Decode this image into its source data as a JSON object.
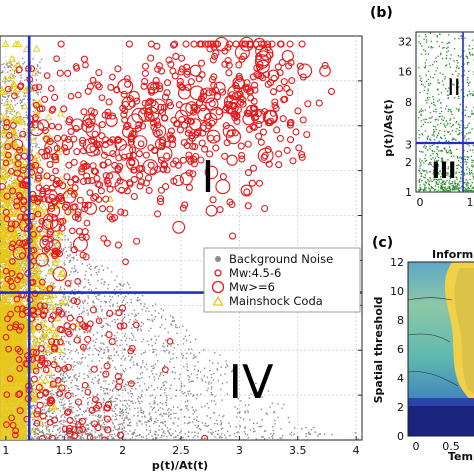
{
  "panels": {
    "b_letter": "(b)",
    "c_letter": "(c)"
  },
  "chart_data": [
    {
      "id": "main",
      "type": "scatter",
      "xlabel": "p(t)/At(t)",
      "x_ticks": [
        "1",
        "1.5",
        "2",
        "2.5",
        "3",
        "3.5",
        "4"
      ],
      "x_tick_values": [
        1,
        1.5,
        2,
        2.5,
        3,
        3.5,
        4
      ],
      "xlim": [
        0.95,
        4.05
      ],
      "ylim": [
        0,
        1
      ],
      "grid": true,
      "thresholds": {
        "x": 1.2,
        "y_frac": 0.365
      },
      "region_labels": [
        "I",
        "IV"
      ],
      "legend": {
        "placement": "center-right",
        "entries": [
          {
            "label": "Background Noise",
            "marker": "dot",
            "color": "#8c8c8c"
          },
          {
            "label": "Mw:4.5-6",
            "marker": "small-circle",
            "color": "#e41a1c"
          },
          {
            "label": "Mw>=6",
            "marker": "large-circle",
            "color": "#e41a1c"
          },
          {
            "label": "Mainshock Coda",
            "marker": "triangle",
            "color": "#e6c619"
          }
        ]
      },
      "colors": {
        "noise": "#8c8c8c",
        "mw": "#e41a1c",
        "coda": "#e6c619",
        "coda_fill": "#e6c619",
        "threshold": "#1f2fbf"
      }
    },
    {
      "id": "inset-b",
      "type": "scatter",
      "ylabel": "p(t)/As(t)",
      "y_ticks": [
        "1",
        "2",
        "3",
        "8",
        "16",
        "32"
      ],
      "y_tick_values": [
        1,
        2,
        3,
        8,
        16,
        32
      ],
      "y_scale": "log",
      "x_ticks": [
        "0",
        "1"
      ],
      "x_tick_values": [
        0,
        1
      ],
      "region_labels": [
        "II",
        "III"
      ],
      "threshold_y": 3,
      "colors": {
        "points": "#2e8b2e",
        "threshold": "#1f2fbf"
      }
    },
    {
      "id": "inset-c",
      "type": "heatmap",
      "title": "Inform",
      "ylabel": "Spatial threshold",
      "xlabel": "Temp",
      "y_ticks": [
        "0",
        "2",
        "4",
        "6",
        "8",
        "10",
        "12"
      ],
      "y_tick_values": [
        0,
        2,
        4,
        6,
        8,
        10,
        12
      ],
      "x_ticks": [
        "0",
        "0.5"
      ],
      "x_tick_values": [
        0,
        0.5
      ],
      "colors": {
        "low": "#1a237e",
        "mid": "#3f7fbf",
        "mid2": "#5fb8b0",
        "high": "#f2d04a"
      }
    }
  ]
}
